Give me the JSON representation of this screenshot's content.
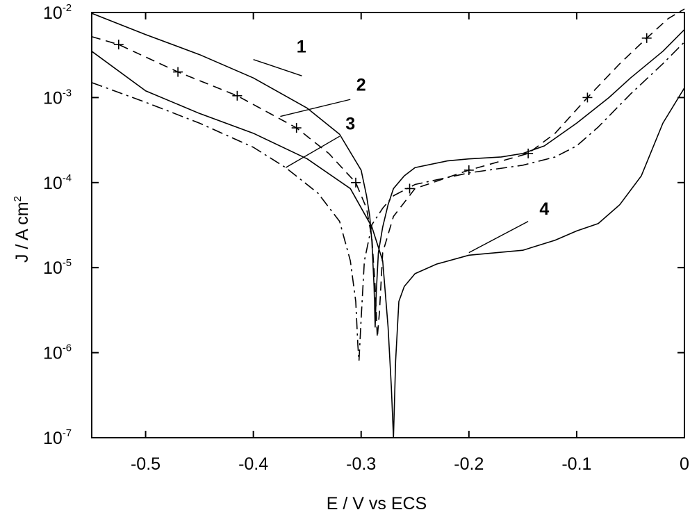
{
  "chart_data": {
    "type": "line",
    "title": "",
    "xlabel": "E / V vs ECS",
    "ylabel_base": "J / A cm",
    "ylabel_exponent": "2",
    "yscale": "log",
    "xlim": [
      -0.55,
      0.0
    ],
    "ylim": [
      1e-07,
      0.01
    ],
    "grid": false,
    "x_ticks": [
      {
        "value": -0.5,
        "label": "-0.5"
      },
      {
        "value": -0.4,
        "label": "-0.4"
      },
      {
        "value": -0.3,
        "label": "-0.3"
      },
      {
        "value": -0.2,
        "label": "-0.2"
      },
      {
        "value": -0.1,
        "label": "-0.1"
      },
      {
        "value": 0.0,
        "label": "0"
      }
    ],
    "y_ticks": [
      {
        "value": 0.01,
        "base": "10",
        "exp": "-2"
      },
      {
        "value": 0.001,
        "base": "10",
        "exp": "-3"
      },
      {
        "value": 0.0001,
        "base": "10",
        "exp": "-4"
      },
      {
        "value": 1e-05,
        "base": "10",
        "exp": "-5"
      },
      {
        "value": 1e-06,
        "base": "10",
        "exp": "-6"
      },
      {
        "value": 1e-07,
        "base": "10",
        "exp": "-7"
      }
    ],
    "series": [
      {
        "label": "1",
        "style": "solid",
        "x": [
          -0.55,
          -0.5,
          -0.45,
          -0.4,
          -0.35,
          -0.32,
          -0.3,
          -0.295,
          -0.292,
          -0.29,
          -0.288,
          -0.287,
          -0.286,
          -0.284,
          -0.28,
          -0.275,
          -0.27,
          -0.26,
          -0.25,
          -0.22,
          -0.2,
          -0.17,
          -0.15,
          -0.13,
          -0.1,
          -0.07,
          -0.05,
          -0.02,
          0.0
        ],
        "y": [
          0.0098,
          0.0055,
          0.0032,
          0.0017,
          0.00075,
          0.00037,
          0.00014,
          7e-05,
          4e-05,
          2e-05,
          6e-06,
          2e-06,
          5e-06,
          1.5e-05,
          3e-05,
          5.5e-05,
          8.5e-05,
          0.00012,
          0.00015,
          0.00018,
          0.00019,
          0.0002,
          0.00022,
          0.00027,
          0.0005,
          0.001,
          0.0017,
          0.0035,
          0.0063
        ]
      },
      {
        "label": "2",
        "style": "dashed-plus",
        "x": [
          -0.55,
          -0.525,
          -0.47,
          -0.415,
          -0.36,
          -0.33,
          -0.305,
          -0.295,
          -0.29,
          -0.287,
          -0.285,
          -0.283,
          -0.28,
          -0.27,
          -0.25,
          -0.2,
          -0.145,
          -0.12,
          -0.09,
          -0.06,
          -0.035,
          -0.015,
          0.0
        ],
        "y": [
          0.0052,
          0.0042,
          0.002,
          0.00105,
          0.00044,
          0.00022,
          0.0001,
          5e-05,
          2.2e-05,
          6e-06,
          1.5e-06,
          3e-06,
          1.5e-05,
          4e-05,
          8.5e-05,
          0.00014,
          0.00022,
          0.00038,
          0.001,
          0.0025,
          0.005,
          0.0085,
          0.011
        ]
      },
      {
        "label": "3",
        "style": "dash-dot",
        "x": [
          -0.55,
          -0.5,
          -0.45,
          -0.4,
          -0.37,
          -0.34,
          -0.32,
          -0.31,
          -0.305,
          -0.303,
          -0.302,
          -0.3,
          -0.297,
          -0.29,
          -0.28,
          -0.27,
          -0.25,
          -0.2,
          -0.15,
          -0.12,
          -0.1,
          -0.08,
          -0.05,
          -0.02,
          0.0
        ],
        "y": [
          0.0015,
          0.00088,
          0.0005,
          0.00026,
          0.00015,
          7.5e-05,
          3.5e-05,
          1.2e-05,
          4e-06,
          1.2e-06,
          8e-07,
          2.5e-06,
          1.2e-05,
          3.2e-05,
          5e-05,
          7e-05,
          9.5e-05,
          0.00013,
          0.00016,
          0.0002,
          0.00027,
          0.00045,
          0.0011,
          0.0025,
          0.0045
        ]
      },
      {
        "label": "4",
        "style": "solid",
        "x": [
          -0.55,
          -0.5,
          -0.45,
          -0.4,
          -0.35,
          -0.31,
          -0.29,
          -0.28,
          -0.275,
          -0.272,
          -0.27,
          -0.268,
          -0.265,
          -0.26,
          -0.25,
          -0.23,
          -0.2,
          -0.15,
          -0.12,
          -0.1,
          -0.08,
          -0.06,
          -0.04,
          -0.02,
          0.0
        ],
        "y": [
          0.0035,
          0.0012,
          0.00065,
          0.00038,
          0.00019,
          8.5e-05,
          3e-05,
          1.2e-05,
          2e-06,
          4e-07,
          1e-07,
          8e-07,
          4e-06,
          6e-06,
          8.5e-06,
          1.1e-05,
          1.4e-05,
          1.6e-05,
          2.1e-05,
          2.7e-05,
          3.3e-05,
          5.5e-05,
          0.00012,
          0.0005,
          0.0013
        ]
      }
    ],
    "markers_series2": {
      "x": [
        -0.525,
        -0.47,
        -0.415,
        -0.36,
        -0.305,
        -0.255,
        -0.2,
        -0.145,
        -0.09,
        -0.035
      ],
      "y": [
        0.0042,
        0.002,
        0.00105,
        0.00044,
        0.0001,
        8.5e-05,
        0.00014,
        0.00022,
        0.001,
        0.005
      ]
    },
    "callouts": [
      {
        "label": "1",
        "text_x": -0.3555,
        "text_y": 0.0034,
        "line": [
          [
            -0.4,
            0.0028
          ],
          [
            -0.355,
            0.0018
          ]
        ],
        "line_to": [
          -0.41,
          0.0019
        ]
      },
      {
        "label": "2",
        "text_x": -0.3,
        "text_y": 0.0012,
        "line": [
          [
            -0.31,
            0.00095
          ],
          [
            -0.375,
            0.0006
          ]
        ]
      },
      {
        "label": "3",
        "text_x": -0.31,
        "text_y": 0.00042,
        "line": [
          [
            -0.32,
            0.00035
          ],
          [
            -0.37,
            0.00015
          ]
        ]
      },
      {
        "label": "4",
        "text_x": -0.13,
        "text_y": 4.2e-05,
        "line": [
          [
            -0.145,
            3.5e-05
          ],
          [
            -0.2,
            1.5e-05
          ]
        ]
      }
    ]
  }
}
